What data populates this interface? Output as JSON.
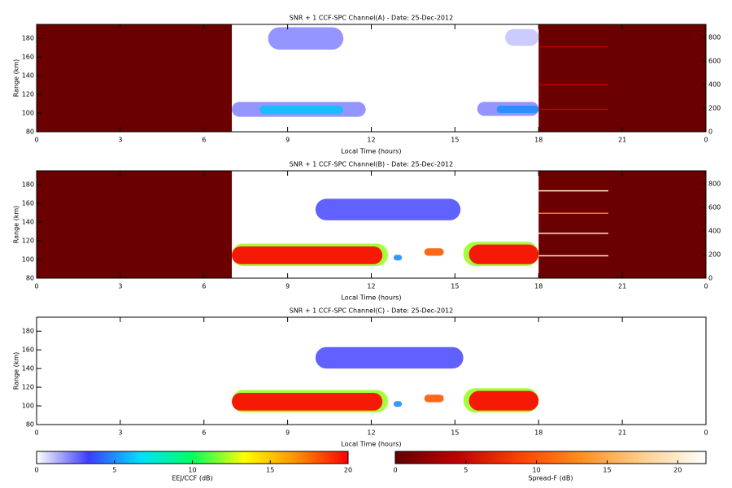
{
  "chart_data": [
    {
      "type": "heatmap",
      "title": "SNR + 1 CCF-SPC Channel(A) - Date: 25-Dec-2012",
      "xlabel": "Local Time (hours)",
      "ylabel": "Range (km)",
      "xlim": [
        0,
        24
      ],
      "xticks": [
        0,
        3,
        6,
        9,
        12,
        15,
        18,
        21,
        {
          "value": 24,
          "label": "0"
        }
      ],
      "ylim": [
        80,
        195
      ],
      "yticks": [
        80,
        100,
        120,
        140,
        160,
        180
      ],
      "y2lim": [
        0,
        910
      ],
      "y2ticks": [
        0,
        200,
        400,
        600,
        800
      ],
      "regions": [
        {
          "x": [
            7,
            11.8
          ],
          "y": [
            96,
            112
          ],
          "value": 2
        },
        {
          "x": [
            8,
            11
          ],
          "y": [
            99,
            108
          ],
          "value": 6
        },
        {
          "x": [
            15.8,
            18
          ],
          "y": [
            97,
            112
          ],
          "value": 2
        },
        {
          "x": [
            16.5,
            18
          ],
          "y": [
            100,
            108
          ],
          "value": 5
        },
        {
          "x": [
            8.3,
            11
          ],
          "y": [
            168,
            192
          ],
          "value": 2
        },
        {
          "x": [
            16.8,
            18
          ],
          "y": [
            172,
            190
          ],
          "value": 1
        }
      ],
      "sf_regions": [
        {
          "x": [
            0,
            7
          ],
          "y": [
            80,
            195
          ],
          "value": 0.5
        },
        {
          "x": [
            18,
            24
          ],
          "y": [
            80,
            195
          ],
          "value": 0.5
        }
      ],
      "sf_lines": [
        {
          "x": [
            18,
            20.5
          ],
          "y2": 190,
          "value": 4
        },
        {
          "x": [
            18,
            20.5
          ],
          "y2": 400,
          "value": 4
        },
        {
          "x": [
            18,
            20.5
          ],
          "y2": 720,
          "value": 4
        }
      ]
    },
    {
      "type": "heatmap",
      "title": "SNR + 1 CCF-SPC Channel(B) - Date: 25-Dec-2012",
      "xlabel": "Local Time (hours)",
      "ylabel": "Range (km)",
      "xlim": [
        0,
        24
      ],
      "xticks": [
        0,
        3,
        6,
        9,
        12,
        15,
        18,
        21,
        {
          "value": 24,
          "label": "0"
        }
      ],
      "ylim": [
        80,
        195
      ],
      "yticks": [
        80,
        100,
        120,
        140,
        160,
        180
      ],
      "y2lim": [
        0,
        910
      ],
      "y2ticks": [
        0,
        200,
        400,
        600,
        800
      ],
      "regions": [
        {
          "x": [
            7,
            12.6
          ],
          "y": [
            93,
            117
          ],
          "value": 12
        },
        {
          "x": [
            7,
            12.4
          ],
          "y": [
            95,
            114
          ],
          "value": 20
        },
        {
          "x": [
            15.3,
            18
          ],
          "y": [
            93,
            119
          ],
          "value": 12
        },
        {
          "x": [
            15.5,
            18
          ],
          "y": [
            95,
            116
          ],
          "value": 20
        },
        {
          "x": [
            13.9,
            14.6
          ],
          "y": [
            104,
            112
          ],
          "value": 18
        },
        {
          "x": [
            12.8,
            13.1
          ],
          "y": [
            99,
            105
          ],
          "value": 5
        },
        {
          "x": [
            10,
            15.2
          ],
          "y": [
            142,
            165
          ],
          "value": 3
        }
      ],
      "sf_regions": [
        {
          "x": [
            0,
            7
          ],
          "y": [
            80,
            195
          ],
          "value": 0.5
        },
        {
          "x": [
            18,
            24
          ],
          "y": [
            80,
            195
          ],
          "value": 0.5
        }
      ],
      "sf_lines": [
        {
          "x": [
            18,
            20.5
          ],
          "y2": 190,
          "value": 20
        },
        {
          "x": [
            18,
            20.5
          ],
          "y2": 380,
          "value": 20
        },
        {
          "x": [
            18,
            20.5
          ],
          "y2": 550,
          "value": 12
        },
        {
          "x": [
            18,
            20.5
          ],
          "y2": 740,
          "value": 20
        }
      ]
    },
    {
      "type": "heatmap",
      "title": "SNR + 1 CCF-SPC Channel(C) - Date: 25-Dec-2012",
      "xlabel": "Local Time (hours)",
      "ylabel": "Range (km)",
      "xlim": [
        0,
        24
      ],
      "xticks": [
        0,
        3,
        6,
        9,
        12,
        15,
        18,
        21,
        {
          "value": 24,
          "label": "0"
        }
      ],
      "ylim": [
        80,
        195
      ],
      "yticks": [
        80,
        100,
        120,
        140,
        160,
        180
      ],
      "regions": [
        {
          "x": [
            7,
            12.6
          ],
          "y": [
            93,
            117
          ],
          "value": 12
        },
        {
          "x": [
            7,
            12.4
          ],
          "y": [
            95,
            114
          ],
          "value": 20
        },
        {
          "x": [
            15.3,
            18
          ],
          "y": [
            93,
            119
          ],
          "value": 12
        },
        {
          "x": [
            15.5,
            18
          ],
          "y": [
            95,
            116
          ],
          "value": 20
        },
        {
          "x": [
            13.9,
            14.6
          ],
          "y": [
            104,
            112
          ],
          "value": 18
        },
        {
          "x": [
            12.8,
            13.1
          ],
          "y": [
            99,
            105
          ],
          "value": 5
        },
        {
          "x": [
            10,
            15.3
          ],
          "y": [
            140,
            163
          ],
          "value": 3
        }
      ]
    },
    {
      "type": "colorbar",
      "label": "EEJ/CCF (dB)",
      "lim": [
        0,
        20
      ],
      "ticks": [
        0,
        5,
        10,
        15,
        20
      ],
      "colors": [
        "#ffffff",
        "#3c3cff",
        "#00e0ff",
        "#00ff60",
        "#ffff00",
        "#ff9000",
        "#ff0000"
      ]
    },
    {
      "type": "colorbar",
      "label": "Spread-F (dB)",
      "lim": [
        0,
        22
      ],
      "ticks": [
        0,
        5,
        10,
        15,
        20
      ],
      "colors": [
        "#600000",
        "#c00000",
        "#ff4000",
        "#ff9020",
        "#ffd090",
        "#ffffff"
      ]
    }
  ]
}
